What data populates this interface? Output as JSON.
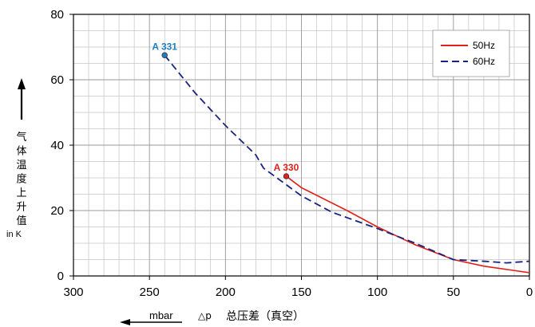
{
  "chart_data": {
    "type": "line",
    "x_axis": {
      "min": 0,
      "max": 300,
      "reversed": true,
      "ticks": [
        300,
        250,
        200,
        150,
        100,
        50,
        0
      ],
      "label": "总压差（真空）",
      "label_prefix": "△p",
      "unit": "mbar"
    },
    "y_axis": {
      "min": 0,
      "max": 80,
      "ticks": [
        0,
        20,
        40,
        60,
        80
      ],
      "label": "气体温度上升值",
      "unit": "in K"
    },
    "grid": true,
    "legend_position": "top-right",
    "series": [
      {
        "name": "50Hz",
        "color": "#e0201a",
        "dash": "solid",
        "points": [
          [
            160,
            30.5
          ],
          [
            150,
            27
          ],
          [
            120,
            20
          ],
          [
            100,
            15
          ],
          [
            75,
            9.5
          ],
          [
            50,
            5
          ],
          [
            30,
            3
          ],
          [
            0,
            1
          ]
        ]
      },
      {
        "name": "60Hz",
        "color": "#1a237e",
        "dash": "dashed",
        "points": [
          [
            240,
            67.5
          ],
          [
            220,
            56
          ],
          [
            200,
            46
          ],
          [
            180,
            37
          ],
          [
            175,
            33
          ],
          [
            150,
            24.5
          ],
          [
            130,
            19.5
          ],
          [
            100,
            14.5
          ],
          [
            75,
            10
          ],
          [
            50,
            5
          ],
          [
            30,
            4.5
          ],
          [
            15,
            4
          ],
          [
            0,
            4.5
          ]
        ]
      }
    ],
    "annotations": [
      {
        "text": "A 330",
        "x": 160,
        "y": 30.5,
        "color": "#e0201a"
      },
      {
        "text": "A 331",
        "x": 240,
        "y": 67.5,
        "color": "#1f7fc0"
      }
    ]
  }
}
